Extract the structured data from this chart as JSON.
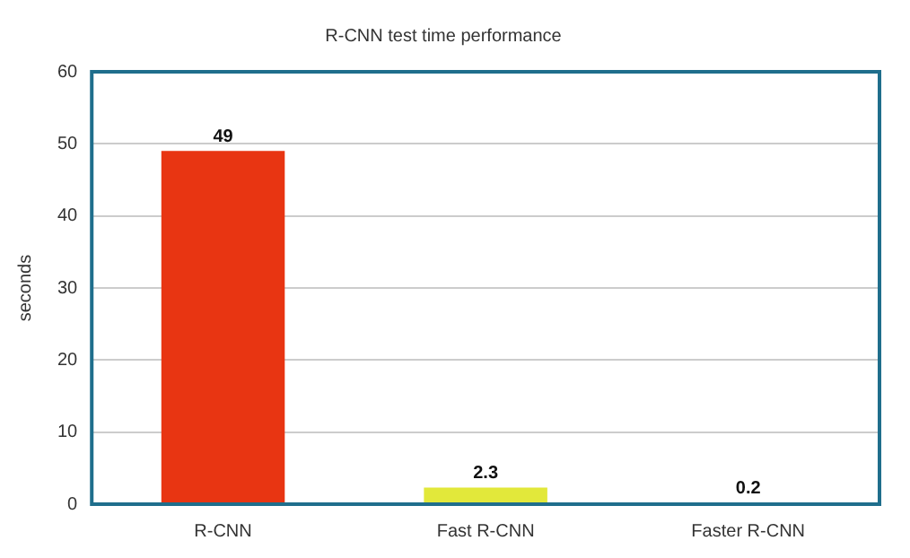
{
  "chart_data": {
    "type": "bar",
    "title": "R-CNN test time performance",
    "ylabel": "seconds",
    "categories": [
      "R-CNN",
      "Fast R-CNN",
      "Faster R-CNN"
    ],
    "values": [
      49,
      2.3,
      0.2
    ],
    "colors": [
      "#e83512",
      "#e2e83a",
      "#3a7fc4"
    ],
    "ylim": [
      0,
      60
    ],
    "yticks": [
      0,
      10,
      20,
      30,
      40,
      50,
      60
    ],
    "grid": "y",
    "data_labels": true
  }
}
